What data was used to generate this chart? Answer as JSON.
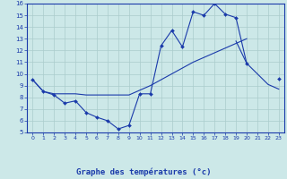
{
  "xlabel": "Graphe des températures (°c)",
  "bg_color": "#cce8e8",
  "line_color": "#1a3aaa",
  "grid_color": "#aacccc",
  "x_values": [
    0,
    1,
    2,
    3,
    4,
    5,
    6,
    7,
    8,
    9,
    10,
    11,
    12,
    13,
    14,
    15,
    16,
    17,
    18,
    19,
    20,
    21,
    22,
    23
  ],
  "series1": [
    9.5,
    8.5,
    8.2,
    7.5,
    7.7,
    6.7,
    6.3,
    6.0,
    5.3,
    5.6,
    8.3,
    8.3,
    12.4,
    13.7,
    12.3,
    15.3,
    15.0,
    16.0,
    15.1,
    14.8,
    10.9,
    null,
    null,
    9.6
  ],
  "series2": [
    9.5,
    null,
    null,
    null,
    null,
    null,
    null,
    null,
    null,
    null,
    null,
    null,
    null,
    null,
    null,
    null,
    null,
    null,
    null,
    12.8,
    10.9,
    10.0,
    9.1,
    8.7
  ],
  "series3": [
    9.5,
    8.5,
    8.3,
    8.3,
    8.3,
    8.2,
    8.2,
    8.2,
    8.2,
    8.2,
    8.6,
    9.0,
    9.5,
    10.0,
    10.5,
    11.0,
    11.4,
    11.8,
    12.2,
    12.6,
    13.0,
    null,
    null,
    9.6
  ],
  "xlim": [
    -0.5,
    23.5
  ],
  "ylim": [
    5,
    16
  ],
  "xticks": [
    0,
    1,
    2,
    3,
    4,
    5,
    6,
    7,
    8,
    9,
    10,
    11,
    12,
    13,
    14,
    15,
    16,
    17,
    18,
    19,
    20,
    21,
    22,
    23
  ],
  "yticks": [
    5,
    6,
    7,
    8,
    9,
    10,
    11,
    12,
    13,
    14,
    15,
    16
  ]
}
